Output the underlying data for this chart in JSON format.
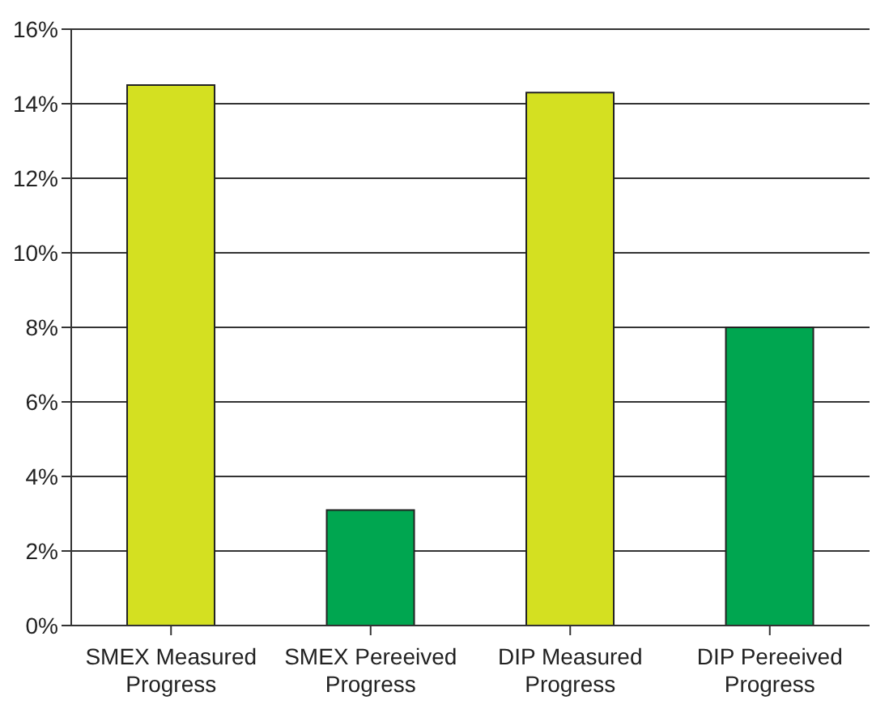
{
  "chart_data": {
    "type": "bar",
    "categories": [
      "SMEX Measured Progress",
      "SMEX Pereeived Progress",
      "DIP Measured Progress",
      "DIP Pereeived Progress"
    ],
    "values": [
      14.5,
      3.1,
      14.3,
      8.0
    ],
    "colors": [
      "#d4e021",
      "#00a650",
      "#d4e021",
      "#00a650"
    ],
    "ylim": [
      0,
      16
    ],
    "yticks": [
      {
        "value": 0,
        "label": "0%"
      },
      {
        "value": 2,
        "label": "2%"
      },
      {
        "value": 4,
        "label": "4%"
      },
      {
        "value": 6,
        "label": "6%"
      },
      {
        "value": 8,
        "label": "8%"
      },
      {
        "value": 10,
        "label": "10%"
      },
      {
        "value": 12,
        "label": "12%"
      },
      {
        "value": 14,
        "label": "14%"
      },
      {
        "value": 16,
        "label": "16%"
      }
    ],
    "grid": "y",
    "legend": false
  }
}
